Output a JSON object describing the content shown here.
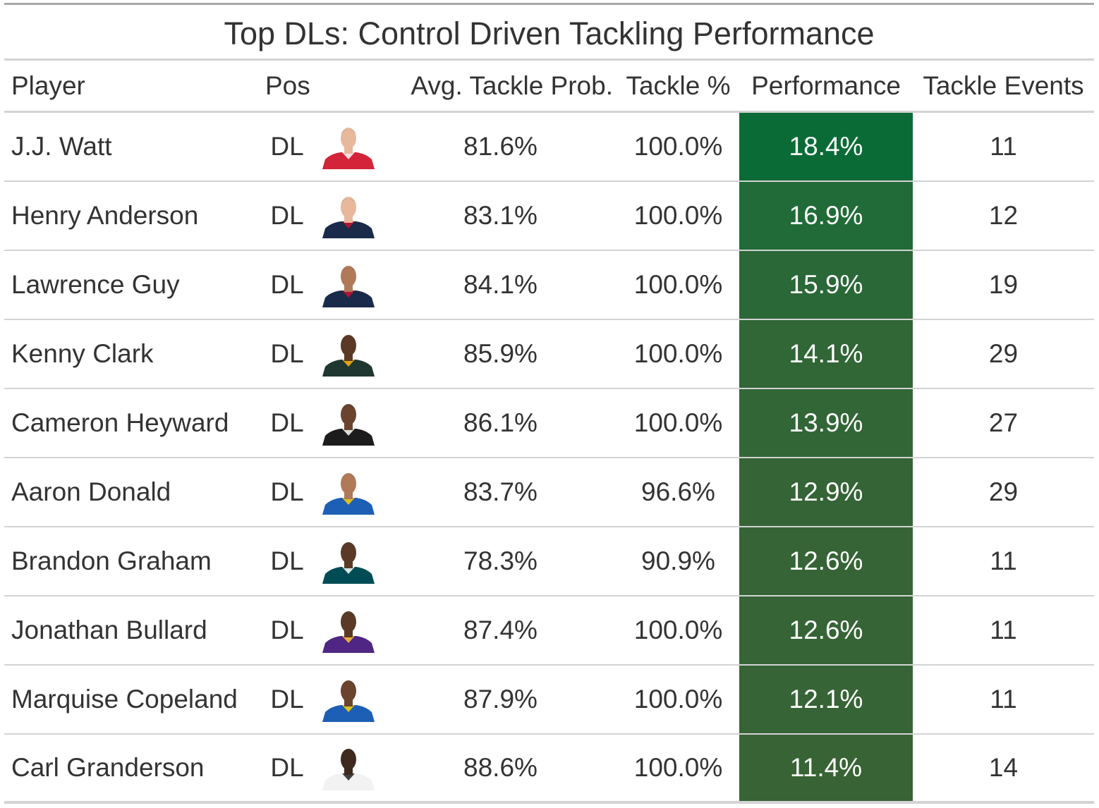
{
  "title": "Top DLs: Control Driven Tackling Performance",
  "columns": {
    "player": "Player",
    "pos": "Pos",
    "avg": "Avg. Tackle Prob.",
    "tackle_pct": "Tackle %",
    "performance": "Performance",
    "events": "Tackle Events"
  },
  "rows": [
    {
      "player": "J.J. Watt",
      "pos": "DL",
      "avg": "81.6%",
      "tackle_pct": "100.0%",
      "performance": "18.4%",
      "events": "11",
      "perf_color": "#0b6b36",
      "jersey_color": "#d3243a",
      "skin_color": "#e8b89c",
      "trim_color": "#ffffff"
    },
    {
      "player": "Henry Anderson",
      "pos": "DL",
      "avg": "83.1%",
      "tackle_pct": "100.0%",
      "performance": "16.9%",
      "events": "12",
      "perf_color": "#206b37",
      "jersey_color": "#1a2a4a",
      "skin_color": "#e8b89c",
      "trim_color": "#c8102e"
    },
    {
      "player": "Lawrence Guy",
      "pos": "DL",
      "avg": "84.1%",
      "tackle_pct": "100.0%",
      "performance": "15.9%",
      "events": "19",
      "perf_color": "#2a6837",
      "jersey_color": "#1a2a4a",
      "skin_color": "#b07a5a",
      "trim_color": "#c8102e"
    },
    {
      "player": "Kenny Clark",
      "pos": "DL",
      "avg": "85.9%",
      "tackle_pct": "100.0%",
      "performance": "14.1%",
      "events": "29",
      "perf_color": "#316637",
      "jersey_color": "#203731",
      "skin_color": "#5a3a26",
      "trim_color": "#ffb612"
    },
    {
      "player": "Cameron Heyward",
      "pos": "DL",
      "avg": "86.1%",
      "tackle_pct": "100.0%",
      "performance": "13.9%",
      "events": "27",
      "perf_color": "#326637",
      "jersey_color": "#1c1c1c",
      "skin_color": "#6b4430",
      "trim_color": "#ffffff"
    },
    {
      "player": "Aaron Donald",
      "pos": "DL",
      "avg": "83.7%",
      "tackle_pct": "96.6%",
      "performance": "12.9%",
      "events": "29",
      "perf_color": "#356436",
      "jersey_color": "#1d5fb4",
      "skin_color": "#b07a5a",
      "trim_color": "#ffd100"
    },
    {
      "player": "Brandon Graham",
      "pos": "DL",
      "avg": "78.3%",
      "tackle_pct": "90.9%",
      "performance": "12.6%",
      "events": "11",
      "perf_color": "#366436",
      "jersey_color": "#004c54",
      "skin_color": "#5a3a26",
      "trim_color": "#ffffff"
    },
    {
      "player": "Jonathan Bullard",
      "pos": "DL",
      "avg": "87.4%",
      "tackle_pct": "100.0%",
      "performance": "12.6%",
      "events": "11",
      "perf_color": "#366436",
      "jersey_color": "#4f2683",
      "skin_color": "#5a3a26",
      "trim_color": "#ffc62f"
    },
    {
      "player": "Marquise Copeland",
      "pos": "DL",
      "avg": "87.9%",
      "tackle_pct": "100.0%",
      "performance": "12.1%",
      "events": "11",
      "perf_color": "#376436",
      "jersey_color": "#1d5fb4",
      "skin_color": "#6b4430",
      "trim_color": "#ffd100"
    },
    {
      "player": "Carl Granderson",
      "pos": "DL",
      "avg": "88.6%",
      "tackle_pct": "100.0%",
      "performance": "11.4%",
      "events": "14",
      "perf_color": "#386335",
      "jersey_color": "#f2f2f2",
      "skin_color": "#3e2a1e",
      "trim_color": "#222222"
    }
  ]
}
